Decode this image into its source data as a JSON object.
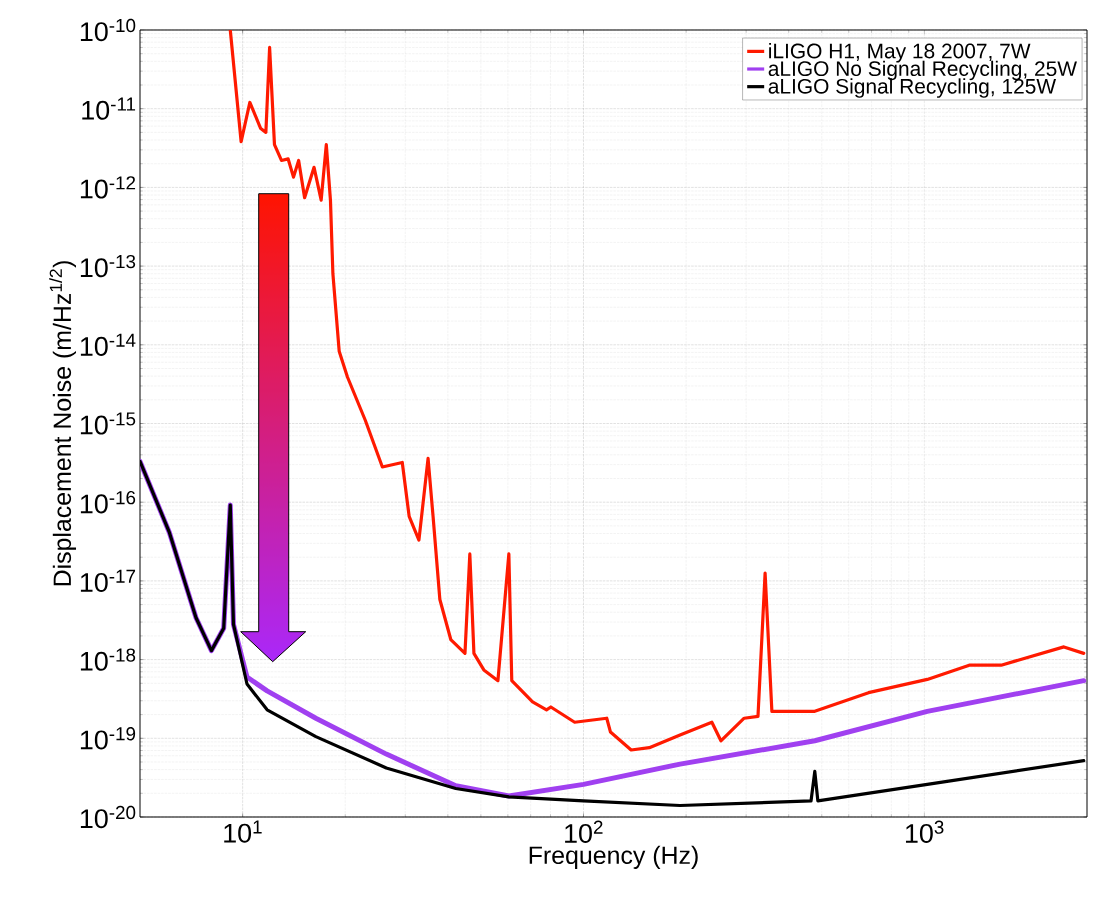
{
  "chart_data": {
    "type": "line",
    "xlabel": "Frequency (Hz)",
    "ylabel": "Displacement Noise (m/Hz$^{1/2}$)",
    "log": "xy",
    "grid": true,
    "legend": "top right",
    "xlim": [
      5,
      3000
    ],
    "ylim": [
      1e-20,
      1e-10
    ],
    "xticks": [
      {
        "value": 10,
        "label": "10$^{1}$"
      },
      {
        "value": 100,
        "label": "10$^{2}$"
      },
      {
        "value": 1000,
        "label": "10$^{3}$"
      }
    ],
    "yticks": [
      {
        "value": 1e-20,
        "label": "10$^{-20}$"
      },
      {
        "value": 1e-19,
        "label": "10$^{-19}$"
      },
      {
        "value": 1e-18,
        "label": "10$^{-18}$"
      },
      {
        "value": 1e-17,
        "label": "10$^{-17}$"
      },
      {
        "value": 1e-16,
        "label": "10$^{-16}$"
      },
      {
        "value": 1e-15,
        "label": "10$^{-15}$"
      },
      {
        "value": 1e-14,
        "label": "10$^{-14}$"
      },
      {
        "value": 1e-13,
        "label": "10$^{-13}$"
      },
      {
        "value": 1e-12,
        "label": "10$^{-12}$"
      },
      {
        "value": 1e-11,
        "label": "10$^{-11}$"
      },
      {
        "value": 1e-10,
        "label": "10$^{-10}$"
      }
    ],
    "series": [
      {
        "name": "iLIGO H1, May 18 2007, 7W",
        "color": "#ff1a00",
        "x": [
          9.2,
          9.9,
          10.5,
          11.3,
          11.7,
          12.0,
          12.4,
          13.0,
          13.6,
          14.1,
          14.6,
          15.2,
          16.2,
          17.0,
          17.6,
          18.1,
          18.4,
          19.2,
          20.3,
          22.9,
          25.7,
          29.4,
          30.8,
          32.9,
          35.0,
          36.2,
          37.9,
          40.8,
          44.9,
          46.4,
          47.7,
          51.0,
          56.1,
          60.4,
          61.6,
          70.9,
          77.9,
          80.2,
          94.2,
          117,
          120,
          138,
          156,
          192,
          238,
          253,
          296,
          325,
          341,
          357,
          477,
          686,
          1020,
          1354,
          1680,
          2566,
          2935
        ],
        "values": [
          1e-10,
          3.8e-12,
          1.2e-11,
          5.6e-12,
          5e-12,
          6e-11,
          3.5e-12,
          2.2e-12,
          2.3e-12,
          1.35e-12,
          2.2e-12,
          7.4e-13,
          1.8e-12,
          6.9e-13,
          3.5e-12,
          6.9e-13,
          8e-14,
          8.3e-15,
          3.9e-15,
          1.1e-15,
          2.8e-16,
          3.2e-16,
          6.6e-17,
          3.3e-17,
          3.6e-16,
          6.6e-17,
          5.8e-18,
          1.8e-18,
          1.2e-18,
          2.2e-17,
          1.2e-18,
          7.4e-19,
          5.4e-19,
          2.2e-17,
          5.4e-19,
          2.9e-19,
          2.3e-19,
          2.5e-19,
          1.6e-19,
          1.8e-19,
          1.2e-19,
          7.1e-20,
          7.6e-20,
          1.1e-19,
          1.6e-19,
          9.3e-20,
          1.8e-19,
          1.9e-19,
          1.26e-17,
          2.2e-19,
          2.2e-19,
          3.8e-19,
          5.6e-19,
          8.5e-19,
          8.5e-19,
          1.45e-18,
          1.2e-18
        ]
      },
      {
        "name": "aLIGO No Signal Recycling, 25W",
        "color": "#a040f0",
        "x": [
          5.0,
          6.1,
          7.3,
          8.1,
          8.8,
          9.2,
          9.4,
          10.3,
          11.8,
          16.4,
          26.4,
          42.2,
          60.4,
          100,
          192,
          477,
          1020,
          2935
        ],
        "values": [
          3.3e-16,
          4.1e-17,
          3.4e-18,
          1.3e-18,
          2.5e-18,
          9.2e-17,
          2.8e-18,
          6e-19,
          4e-19,
          1.8e-19,
          6.3e-20,
          2.5e-20,
          1.85e-20,
          2.6e-20,
          4.7e-20,
          9.3e-20,
          2.2e-19,
          5.4e-19
        ]
      },
      {
        "name": "aLIGO Signal Recycling, 125W",
        "color": "#000000",
        "x": [
          5.0,
          6.1,
          7.3,
          8.1,
          8.8,
          9.2,
          9.4,
          10.3,
          11.8,
          16.4,
          26.4,
          42.2,
          60.4,
          100,
          192,
          465,
          477,
          487,
          1020,
          2935
        ],
        "values": [
          3.3e-16,
          4.1e-17,
          3.4e-18,
          1.3e-18,
          2.5e-18,
          9.2e-17,
          2.8e-18,
          4.9e-19,
          2.3e-19,
          1.05e-19,
          4.2e-20,
          2.3e-20,
          1.8e-20,
          1.6e-20,
          1.4e-20,
          1.6e-20,
          3.8e-20,
          1.6e-20,
          2.6e-20,
          5.2e-20
        ]
      }
    ]
  }
}
